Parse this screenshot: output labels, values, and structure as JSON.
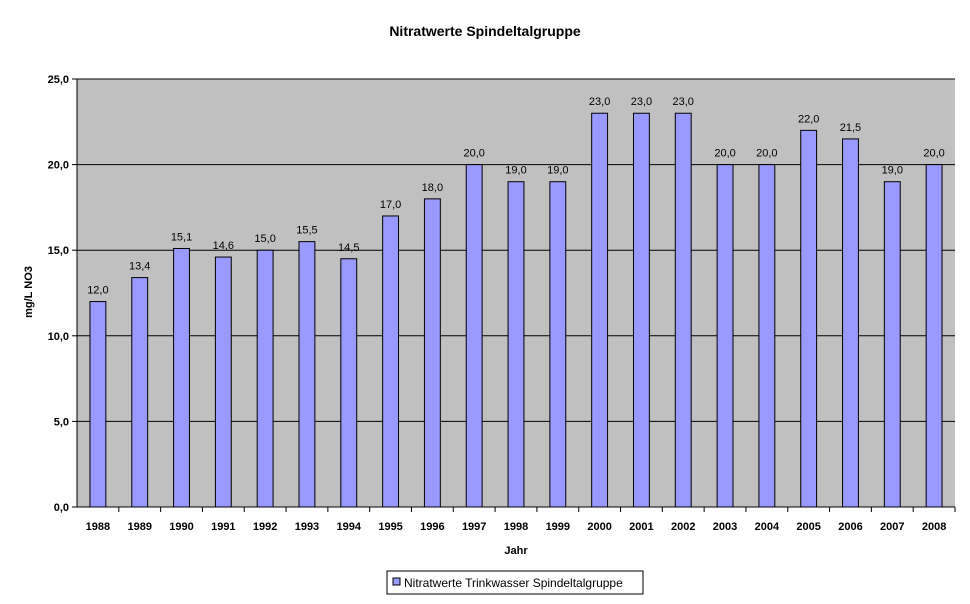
{
  "chart_data": {
    "type": "bar",
    "title": "Nitratwerte Spindeltalgruppe",
    "xlabel": "Jahr",
    "ylabel": "mg/L NO3",
    "ylim": [
      0,
      25
    ],
    "yticks": [
      0,
      5,
      10,
      15,
      20,
      25
    ],
    "ytick_labels": [
      "0,0",
      "5,0",
      "10,0",
      "15,0",
      "20,0",
      "25,0"
    ],
    "grid": true,
    "legend_position": "bottom",
    "categories": [
      "1988",
      "1989",
      "1990",
      "1991",
      "1992",
      "1993",
      "1994",
      "1995",
      "1996",
      "1997",
      "1998",
      "1999",
      "2000",
      "2001",
      "2002",
      "2003",
      "2004",
      "2005",
      "2006",
      "2007",
      "2008"
    ],
    "series": [
      {
        "name": "Nitratwerte Trinkwasser Spindeltalgruppe",
        "values": [
          12.0,
          13.4,
          15.1,
          14.6,
          15.0,
          15.5,
          14.5,
          17.0,
          18.0,
          20.0,
          19.0,
          19.0,
          23.0,
          23.0,
          23.0,
          20.0,
          20.0,
          22.0,
          21.5,
          19.0,
          20.0
        ],
        "labels": [
          "12,0",
          "13,4",
          "15,1",
          "14,6",
          "15,0",
          "15,5",
          "14,5",
          "17,0",
          "18,0",
          "20,0",
          "19,0",
          "19,0",
          "23,0",
          "23,0",
          "23,0",
          "20,0",
          "20,0",
          "22,0",
          "21,5",
          "19,0",
          "20,0"
        ],
        "color": "#9999ff"
      }
    ],
    "plot_background": "#c0c0c0",
    "bar_outline": "#000000"
  }
}
